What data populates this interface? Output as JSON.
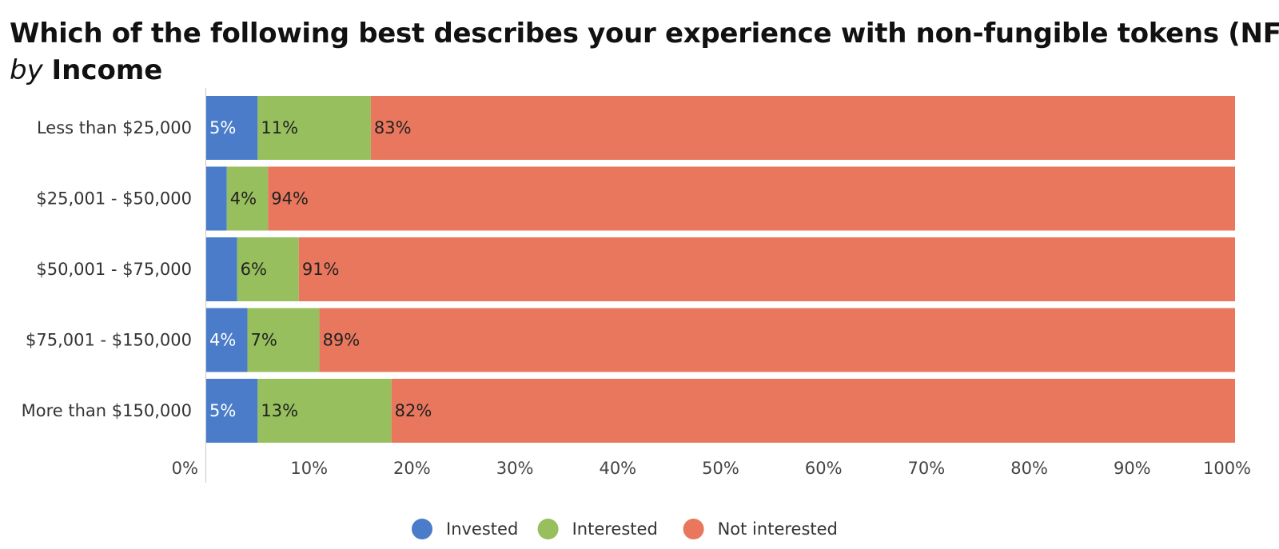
{
  "chart_data": {
    "type": "bar",
    "orientation": "horizontal",
    "stacked": true,
    "title": "Which of the following best describes your experience with non-fungible tokens (NFTs)?",
    "subtitle_prefix": "by",
    "subtitle_group": "Income",
    "categories": [
      "Less than $25,000",
      "$25,001 - $50,000",
      "$50,001 - $75,000",
      "$75,001 - $150,000",
      "More than $150,000"
    ],
    "series": [
      {
        "name": "Invested",
        "color": "#4a7cc9",
        "values": [
          5,
          2,
          3,
          4,
          5
        ],
        "labels": [
          "5%",
          "",
          "",
          "4%",
          "5%"
        ],
        "label_color": "#ffffff"
      },
      {
        "name": "Interested",
        "color": "#97bf5d",
        "values": [
          11,
          4,
          6,
          7,
          13
        ],
        "labels": [
          "11%",
          "4%",
          "6%",
          "7%",
          "13%"
        ],
        "label_color": "#222222"
      },
      {
        "name": "Not interested",
        "color": "#e8775d",
        "values": [
          83,
          94,
          91,
          89,
          82
        ],
        "labels": [
          "83%",
          "94%",
          "91%",
          "89%",
          "82%"
        ],
        "label_color": "#222222"
      }
    ],
    "xlim": [
      0,
      100
    ],
    "x_ticks": [
      "0%",
      "10%",
      "20%",
      "30%",
      "40%",
      "50%",
      "60%",
      "70%",
      "80%",
      "90%",
      "100%"
    ],
    "grid": false,
    "legend_position": "bottom-center"
  }
}
